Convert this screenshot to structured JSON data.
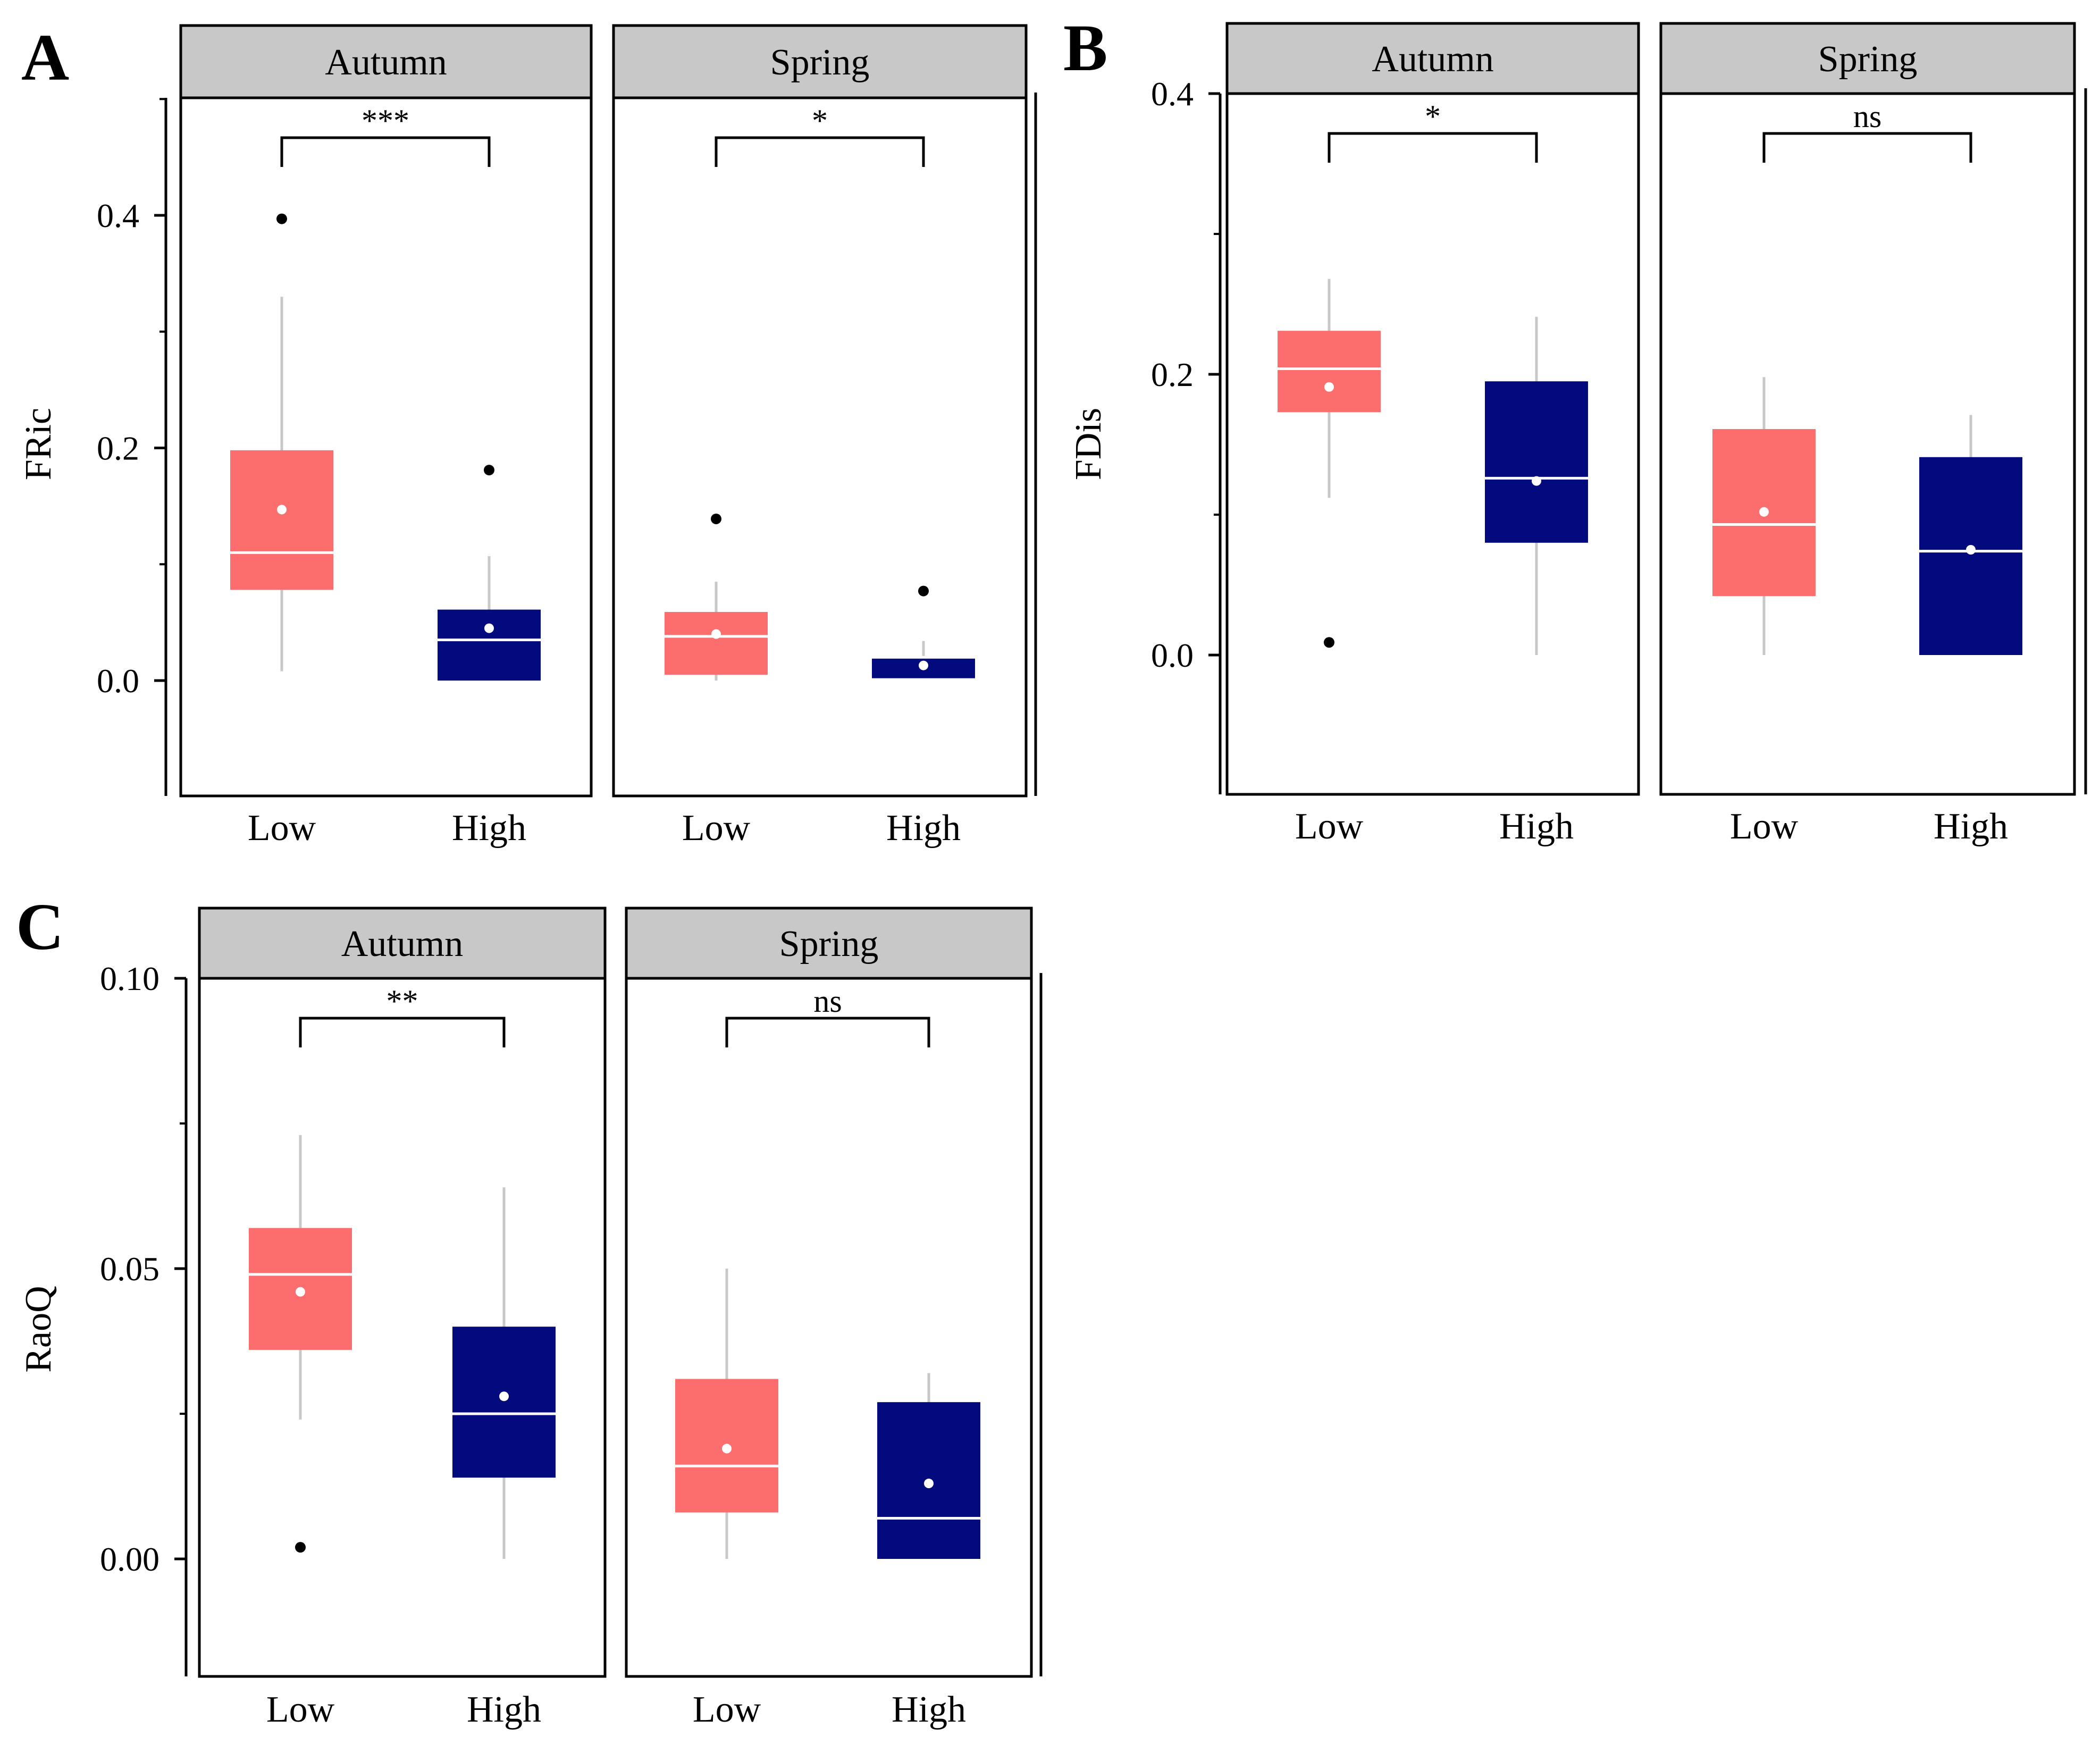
{
  "colors": {
    "low": "#FC6E6E",
    "high": "#020A7D",
    "strip": "#C8C8C8",
    "whisker": "#C8C8C8",
    "median": "#FFFFFF",
    "mean": "#FFFFFF",
    "outlier": "#000000"
  },
  "chart_data": [
    {
      "type": "boxplot",
      "panel_label": "A",
      "ylabel": "FRic",
      "ylim": [
        -0.1,
        0.5
      ],
      "yticks": [
        0.0,
        0.2,
        0.4
      ],
      "ytick_labels": [
        "0.0",
        "0.2",
        "0.4"
      ],
      "categories": [
        "Low",
        "High"
      ],
      "facets": [
        {
          "strip": "Autumn",
          "significance": "***",
          "boxes": [
            {
              "group": "Low",
              "q1": 0.078,
              "median": 0.11,
              "q3": 0.198,
              "whisker_low": 0.008,
              "whisker_high": 0.33,
              "mean": 0.147,
              "outliers": [
                0.397
              ]
            },
            {
              "group": "High",
              "q1": 0.0,
              "median": 0.035,
              "q3": 0.061,
              "whisker_low": 0.0,
              "whisker_high": 0.107,
              "mean": 0.045,
              "outliers": [
                0.181
              ]
            }
          ]
        },
        {
          "strip": "Spring",
          "significance": "*",
          "boxes": [
            {
              "group": "Low",
              "q1": 0.005,
              "median": 0.038,
              "q3": 0.059,
              "whisker_low": 0.0,
              "whisker_high": 0.085,
              "mean": 0.04,
              "outliers": [
                0.139
              ]
            },
            {
              "group": "High",
              "q1": 0.002,
              "median": 0.02,
              "q3": 0.02,
              "whisker_low": 0.002,
              "whisker_high": 0.034,
              "mean": 0.013,
              "outliers": [
                0.077
              ]
            }
          ]
        }
      ]
    },
    {
      "type": "boxplot",
      "panel_label": "B",
      "ylabel": "FDis",
      "ylim": [
        -0.1,
        0.4
      ],
      "yticks": [
        0.0,
        0.2,
        0.4
      ],
      "ytick_labels": [
        "0.0",
        "0.2",
        "0.4"
      ],
      "categories": [
        "Low",
        "High"
      ],
      "facets": [
        {
          "strip": "Autumn",
          "significance": "*",
          "boxes": [
            {
              "group": "Low",
              "q1": 0.173,
              "median": 0.204,
              "q3": 0.231,
              "whisker_low": 0.112,
              "whisker_high": 0.268,
              "mean": 0.191,
              "outliers": [
                0.009
              ]
            },
            {
              "group": "High",
              "q1": 0.08,
              "median": 0.126,
              "q3": 0.195,
              "whisker_low": 0.0,
              "whisker_high": 0.241,
              "mean": 0.124,
              "outliers": []
            }
          ]
        },
        {
          "strip": "Spring",
          "significance": "ns",
          "boxes": [
            {
              "group": "Low",
              "q1": 0.042,
              "median": 0.093,
              "q3": 0.161,
              "whisker_low": 0.0,
              "whisker_high": 0.198,
              "mean": 0.102,
              "outliers": []
            },
            {
              "group": "High",
              "q1": 0.0,
              "median": 0.074,
              "q3": 0.141,
              "whisker_low": 0.0,
              "whisker_high": 0.171,
              "mean": 0.075,
              "outliers": []
            }
          ]
        }
      ]
    },
    {
      "type": "boxplot",
      "panel_label": "C",
      "ylabel": "RaoQ",
      "ylim": [
        -0.02,
        0.1
      ],
      "yticks": [
        0.0,
        0.05,
        0.1
      ],
      "ytick_labels": [
        "0.00",
        "0.05",
        "0.10"
      ],
      "categories": [
        "Low",
        "High"
      ],
      "facets": [
        {
          "strip": "Autumn",
          "significance": "**",
          "boxes": [
            {
              "group": "Low",
              "q1": 0.036,
              "median": 0.049,
              "q3": 0.057,
              "whisker_low": 0.024,
              "whisker_high": 0.073,
              "mean": 0.046,
              "outliers": [
                0.002
              ]
            },
            {
              "group": "High",
              "q1": 0.014,
              "median": 0.025,
              "q3": 0.04,
              "whisker_low": 0.0,
              "whisker_high": 0.064,
              "mean": 0.028,
              "outliers": []
            }
          ]
        },
        {
          "strip": "Spring",
          "significance": "ns",
          "boxes": [
            {
              "group": "Low",
              "q1": 0.008,
              "median": 0.016,
              "q3": 0.031,
              "whisker_low": 0.0,
              "whisker_high": 0.05,
              "mean": 0.019,
              "outliers": []
            },
            {
              "group": "High",
              "q1": 0.0,
              "median": 0.007,
              "q3": 0.027,
              "whisker_low": 0.0,
              "whisker_high": 0.032,
              "mean": 0.013,
              "outliers": []
            }
          ]
        }
      ]
    }
  ]
}
